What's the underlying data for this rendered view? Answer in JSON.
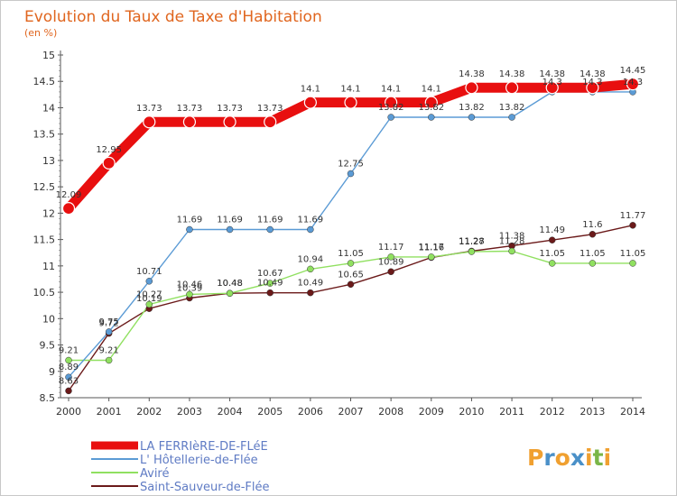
{
  "title": "Evolution du Taux de Taxe d'Habitation",
  "subtitle": "(en %)",
  "brand": {
    "letters": [
      "P",
      "r",
      "o",
      "x",
      "i",
      "t",
      "i"
    ],
    "colors": [
      "#f0a030",
      "#4a90c8",
      "#f0a030",
      "#4a90c8",
      "#f0a030",
      "#7ab648",
      "#f0a030"
    ]
  },
  "chart_data": {
    "type": "line",
    "x": [
      "2000",
      "2001",
      "2002",
      "2003",
      "2004",
      "2005",
      "2006",
      "2007",
      "2008",
      "2009",
      "2010",
      "2011",
      "2012",
      "2013",
      "2014"
    ],
    "ylim": [
      8.5,
      15
    ],
    "yticks": [
      "8.5",
      "9",
      "9.5",
      "10",
      "10.5",
      "11",
      "11.5",
      "12",
      "12.5",
      "13",
      "13.5",
      "14",
      "14.5",
      "15"
    ],
    "grid": false,
    "legend_position": "bottom-left",
    "series": [
      {
        "name": "LA FERRIèRE-DE-FLéE",
        "color": "#e80f0f",
        "values": [
          12.09,
          12.95,
          13.73,
          13.73,
          13.73,
          13.73,
          14.1,
          14.1,
          14.1,
          14.1,
          14.38,
          14.38,
          14.38,
          14.38,
          14.45
        ],
        "labels": [
          "12.09",
          "12.95",
          "13.73",
          "13.73",
          "13.73",
          "13.73",
          "14.1",
          "14.1",
          "14.1",
          "14.1",
          "14.38",
          "14.38",
          "14.38",
          "14.38",
          "14.45"
        ]
      },
      {
        "name": "L' Hôtellerie-de-Flée",
        "color": "#5b9bd5",
        "values": [
          8.89,
          9.75,
          10.71,
          11.69,
          11.69,
          11.69,
          11.69,
          12.75,
          13.82,
          13.82,
          13.82,
          13.82,
          14.3,
          14.3,
          14.3
        ],
        "labels": [
          "8.89",
          "9.75",
          "10.71",
          "11.69",
          "11.69",
          "11.69",
          "11.69",
          "12.75",
          "13.82",
          "13.82",
          "13.82",
          "13.82",
          "14.3",
          "14.3",
          "14.3"
        ]
      },
      {
        "name": "Aviré",
        "color": "#90e060",
        "values": [
          9.21,
          9.21,
          10.27,
          10.46,
          10.48,
          10.67,
          10.94,
          11.05,
          11.17,
          11.17,
          11.27,
          11.28,
          11.05,
          11.05,
          11.05
        ],
        "labels": [
          "9.21",
          "9.21",
          "10.27",
          "10.46",
          "10.48",
          "10.67",
          "10.94",
          "11.05",
          "11.17",
          "11.17",
          "11.27",
          "11.28",
          "11.05",
          "11.05",
          "11.05"
        ]
      },
      {
        "name": "Saint-Sauveur-de-Flée",
        "color": "#6b1a1a",
        "values": [
          8.63,
          9.72,
          10.19,
          10.39,
          10.48,
          10.49,
          10.49,
          10.65,
          10.89,
          11.16,
          11.28,
          11.38,
          11.49,
          11.6,
          11.77
        ],
        "labels": [
          "8.63",
          "9.72",
          "10.19",
          "10.39",
          "10.48",
          "10.49",
          "10.49",
          "10.65",
          "10.89",
          "11.16",
          "11.28",
          "11.38",
          "11.49",
          "11.6",
          "11.77"
        ]
      }
    ]
  }
}
